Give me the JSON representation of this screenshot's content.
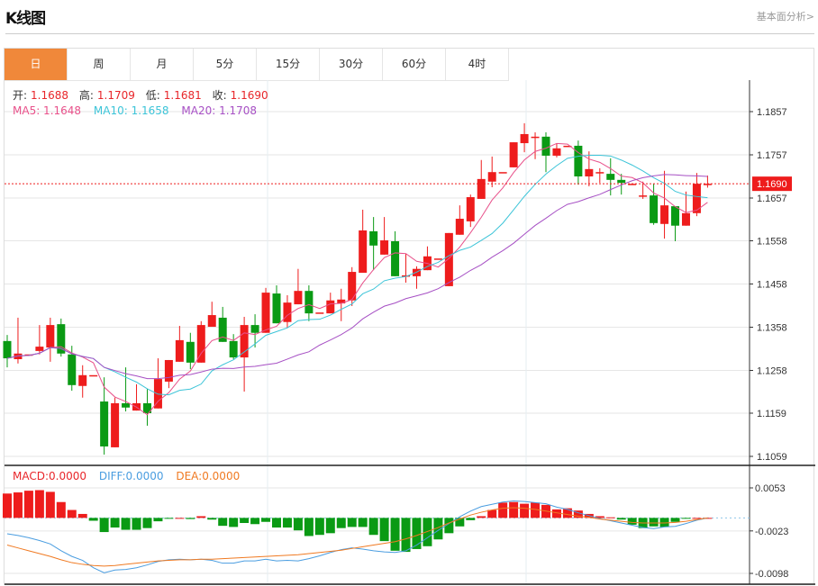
{
  "header": {
    "title": "K线图",
    "link": "基本面分析>"
  },
  "tabs": [
    "日",
    "周",
    "月",
    "5分",
    "15分",
    "30分",
    "60分",
    "4时"
  ],
  "active_tab": 0,
  "ohlc_legend": {
    "open_label": "开:",
    "open": "1.1688",
    "high_label": "高:",
    "high": "1.1709",
    "low_label": "低:",
    "low": "1.1681",
    "close_label": "收:",
    "close": "1.1690"
  },
  "ma_legend": {
    "ma5": "MA5: 1.1648",
    "ma10": "MA10: 1.1658",
    "ma20": "MA20: 1.1708"
  },
  "macd_legend": {
    "macd": "MACD:0.0000",
    "diff": "DIFF:0.0000",
    "dea": "DEA:0.0000"
  },
  "current_price": "1.1690",
  "colors": {
    "up": "#ee1c1c",
    "down": "#0a9a14",
    "ma5": "#e8508a",
    "ma10": "#3cc4d8",
    "ma20": "#a64fc4",
    "diff": "#4a9de0",
    "dea": "#f07a22",
    "accent": "#f0883a"
  },
  "chart_data": [
    {
      "type": "candlestick",
      "title": "K线图",
      "ylim": [
        1.1059,
        1.1857
      ],
      "yticks": [
        "1.1857",
        "1.1757",
        "1.1657",
        "1.1558",
        "1.1458",
        "1.1358",
        "1.1258",
        "1.1159",
        "1.1059"
      ],
      "candles": [
        [
          1.1326,
          1.134,
          1.1265,
          1.1286
        ],
        [
          1.1284,
          1.138,
          1.1274,
          1.1297
        ],
        [
          1.1295,
          1.1295,
          1.1295,
          1.1295
        ],
        [
          1.1303,
          1.1363,
          1.1295,
          1.1313
        ],
        [
          1.1311,
          1.138,
          1.1278,
          1.1363
        ],
        [
          1.1365,
          1.1378,
          1.129,
          1.1297
        ],
        [
          1.1295,
          1.1315,
          1.1211,
          1.1224
        ],
        [
          1.1222,
          1.127,
          1.1195,
          1.1247
        ],
        [
          1.1247,
          1.1247,
          1.1247,
          1.1247
        ],
        [
          1.1186,
          1.1242,
          1.1063,
          1.1082
        ],
        [
          1.108,
          1.1195,
          1.108,
          1.1182
        ],
        [
          1.1182,
          1.1265,
          1.1163,
          1.1172
        ],
        [
          1.1165,
          1.1226,
          1.1165,
          1.1182
        ],
        [
          1.1182,
          1.1215,
          1.113,
          1.1159
        ],
        [
          1.117,
          1.1286,
          1.117,
          1.1238
        ],
        [
          1.1232,
          1.1282,
          1.1217,
          1.1282
        ],
        [
          1.1278,
          1.1361,
          1.1278,
          1.1328
        ],
        [
          1.1324,
          1.1345,
          1.1261,
          1.1276
        ],
        [
          1.1276,
          1.1372,
          1.1276,
          1.1363
        ],
        [
          1.1359,
          1.1417,
          1.1359,
          1.1386
        ],
        [
          1.138,
          1.1405,
          1.1324,
          1.1324
        ],
        [
          1.1326,
          1.1342,
          1.1284,
          1.1288
        ],
        [
          1.1288,
          1.1382,
          1.1209,
          1.1363
        ],
        [
          1.1363,
          1.1388,
          1.1311,
          1.1345
        ],
        [
          1.1345,
          1.1449,
          1.1345,
          1.1438
        ],
        [
          1.1436,
          1.1455,
          1.1367,
          1.1367
        ],
        [
          1.137,
          1.1432,
          1.1357,
          1.1415
        ],
        [
          1.1411,
          1.1493,
          1.1411,
          1.1442
        ],
        [
          1.1442,
          1.1455,
          1.1372,
          1.139
        ],
        [
          1.1392,
          1.1392,
          1.1392,
          1.1392
        ],
        [
          1.139,
          1.1438,
          1.139,
          1.142
        ],
        [
          1.1413,
          1.1447,
          1.1372,
          1.1422
        ],
        [
          1.142,
          1.1497,
          1.1407,
          1.1486
        ],
        [
          1.1484,
          1.163,
          1.1484,
          1.1582
        ],
        [
          1.158,
          1.1613,
          1.149,
          1.1547
        ],
        [
          1.1526,
          1.1613,
          1.1526,
          1.1559
        ],
        [
          1.1557,
          1.158,
          1.1476,
          1.1476
        ],
        [
          1.1478,
          1.1528,
          1.1461,
          1.1478
        ],
        [
          1.1476,
          1.1499,
          1.1447,
          1.1493
        ],
        [
          1.149,
          1.1545,
          1.149,
          1.1522
        ],
        [
          1.1517,
          1.1517,
          1.1517,
          1.1517
        ],
        [
          1.1453,
          1.1576,
          1.1453,
          1.1576
        ],
        [
          1.1572,
          1.164,
          1.1572,
          1.1609
        ],
        [
          1.1603,
          1.1665,
          1.159,
          1.1659
        ],
        [
          1.1655,
          1.1745,
          1.1655,
          1.1701
        ],
        [
          1.1695,
          1.1753,
          1.1682,
          1.1717
        ],
        [
          1.1717,
          1.1717,
          1.1717,
          1.1717
        ],
        [
          1.1728,
          1.1786,
          1.1728,
          1.1786
        ],
        [
          1.1784,
          1.183,
          1.1763,
          1.1805
        ],
        [
          1.1799,
          1.1809,
          1.1747,
          1.1799
        ],
        [
          1.1799,
          1.1809,
          1.1717,
          1.1755
        ],
        [
          1.1755,
          1.1784,
          1.1751,
          1.1772
        ],
        [
          1.1778,
          1.1778,
          1.1778,
          1.1778
        ],
        [
          1.1778,
          1.179,
          1.1688,
          1.1707
        ],
        [
          1.1707,
          1.1765,
          1.1684,
          1.1724
        ],
        [
          1.1717,
          1.1726,
          1.1692,
          1.1717
        ],
        [
          1.1713,
          1.1749,
          1.1663,
          1.1699
        ],
        [
          1.1699,
          1.1713,
          1.1665,
          1.1692
        ],
        [
          1.169,
          1.169,
          1.169,
          1.169
        ],
        [
          1.1663,
          1.1695,
          1.1655,
          1.1663
        ],
        [
          1.1663,
          1.169,
          1.1595,
          1.1599
        ],
        [
          1.1597,
          1.172,
          1.1563,
          1.164
        ],
        [
          1.1638,
          1.1638,
          1.1557,
          1.1593
        ],
        [
          1.1593,
          1.1672,
          1.1593,
          1.1622
        ],
        [
          1.1622,
          1.1715,
          1.1615,
          1.169
        ],
        [
          1.1688,
          1.1709,
          1.1681,
          1.169
        ]
      ],
      "candle_format": [
        "open",
        "high",
        "low",
        "close"
      ],
      "ma_periods": [
        5,
        10,
        20
      ]
    },
    {
      "type": "bar",
      "title": "MACD",
      "ylim": [
        -0.0098,
        0.0053
      ],
      "yticks": [
        "0.0053",
        "-0.0023",
        "-0.0098"
      ],
      "macd": [
        0.0043,
        0.0045,
        0.0048,
        0.0049,
        0.0046,
        0.0028,
        0.0014,
        0.0007,
        -0.0005,
        -0.0025,
        -0.0017,
        -0.0021,
        -0.0021,
        -0.0018,
        -0.0006,
        -0.0001,
        0.0,
        -0.0002,
        0.0003,
        -0.0003,
        -0.0014,
        -0.0016,
        -0.0009,
        -0.0011,
        -0.0007,
        -0.0017,
        -0.0017,
        -0.0022,
        -0.0032,
        -0.003,
        -0.0027,
        -0.0018,
        -0.0016,
        -0.0016,
        -0.003,
        -0.0041,
        -0.0058,
        -0.006,
        -0.0055,
        -0.005,
        -0.0038,
        -0.0027,
        -0.0015,
        -0.0004,
        0.0003,
        0.0014,
        0.0027,
        0.0028,
        0.0025,
        0.0027,
        0.0023,
        0.0015,
        0.0017,
        0.0013,
        0.0007,
        0.0003,
        0.0001,
        -0.0003,
        -0.0012,
        -0.0018,
        -0.0015,
        -0.0016,
        -0.0007,
        -0.0001,
        0.0,
        0.0
      ],
      "diff": [
        -0.0028,
        -0.0031,
        -0.0035,
        -0.004,
        -0.0046,
        -0.0058,
        -0.0068,
        -0.0075,
        -0.0088,
        -0.0097,
        -0.0092,
        -0.0091,
        -0.0088,
        -0.0083,
        -0.0077,
        -0.0074,
        -0.0073,
        -0.0074,
        -0.0073,
        -0.0075,
        -0.008,
        -0.008,
        -0.0076,
        -0.0076,
        -0.0073,
        -0.0076,
        -0.0075,
        -0.0076,
        -0.0072,
        -0.0067,
        -0.0061,
        -0.0056,
        -0.0053,
        -0.0055,
        -0.0058,
        -0.006,
        -0.0061,
        -0.0058,
        -0.0048,
        -0.0035,
        -0.0022,
        -0.001,
        0.0002,
        0.0012,
        0.002,
        0.0024,
        0.0028,
        0.003,
        0.0029,
        0.0027,
        0.0025,
        0.0019,
        0.0015,
        0.0009,
        0.0004,
        -0.0001,
        -0.0005,
        -0.0009,
        -0.0013,
        -0.0017,
        -0.0019,
        -0.0016,
        -0.0015,
        -0.001,
        -0.0004,
        0.0
      ],
      "dea": [
        -0.0048,
        -0.0053,
        -0.0058,
        -0.0063,
        -0.0068,
        -0.0074,
        -0.0079,
        -0.0082,
        -0.0084,
        -0.0085,
        -0.0084,
        -0.0082,
        -0.008,
        -0.0078,
        -0.0076,
        -0.0075,
        -0.0074,
        -0.0074,
        -0.0073,
        -0.0073,
        -0.0072,
        -0.0071,
        -0.007,
        -0.0069,
        -0.0068,
        -0.0067,
        -0.0066,
        -0.0065,
        -0.0063,
        -0.0061,
        -0.0059,
        -0.0057,
        -0.0054,
        -0.0051,
        -0.0048,
        -0.0045,
        -0.0042,
        -0.0037,
        -0.0031,
        -0.0024,
        -0.0017,
        -0.0009,
        -0.0002,
        0.0005,
        0.001,
        0.0014,
        0.0017,
        0.0018,
        0.0017,
        0.0015,
        0.0012,
        0.0009,
        0.0006,
        0.0003,
        0.0001,
        -0.0002,
        -0.0004,
        -0.0006,
        -0.0008,
        -0.0009,
        -0.0009,
        -0.0009,
        -0.0008,
        -0.0006,
        -0.0003,
        0.0
      ]
    }
  ]
}
